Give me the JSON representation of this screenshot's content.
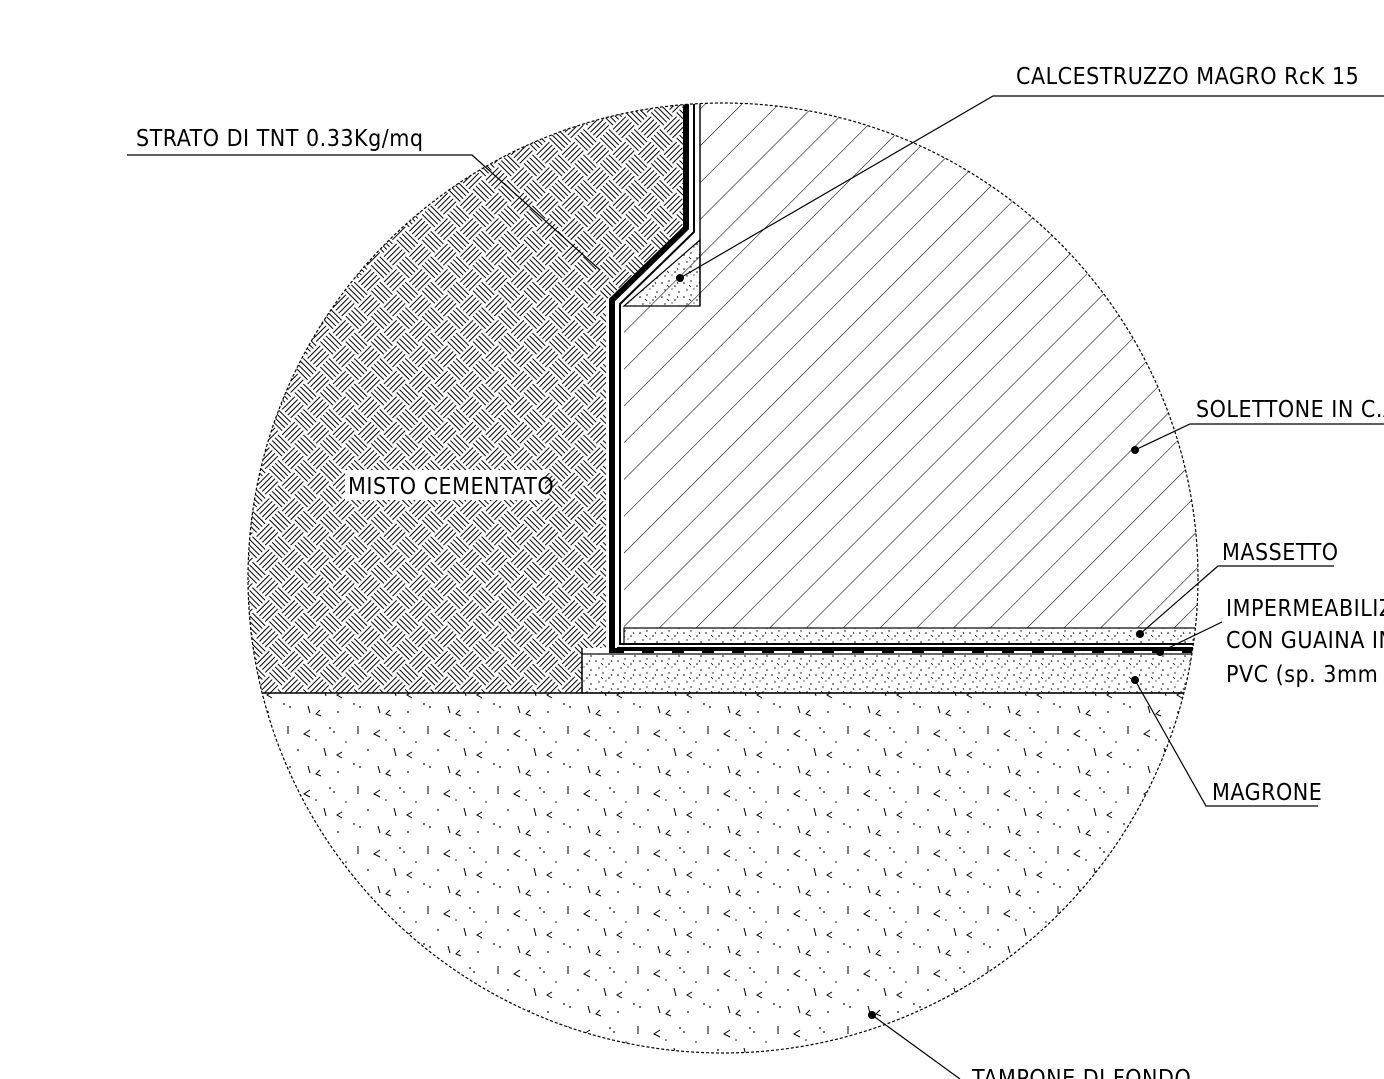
{
  "labels": {
    "calcestruzzo": "CALCESTRUZZO MAGRO RcK 15",
    "strato_tnt": "STRATO DI TNT 0.33Kg/mq",
    "misto_cementato": "MISTO CEMENTATO",
    "solettone": "SOLETTONE IN C.A",
    "massetto": "MASSETTO",
    "impermeabilizzazione_1": "IMPERMEABILIZZ",
    "impermeabilizzazione_2": "CON GUAINA IN",
    "impermeabilizzazione_3": "PVC (sp. 3mm",
    "magrone": "MAGRONE",
    "tampone": "TAMPONE DI FONDO"
  },
  "colors": {
    "ink": "#000000",
    "paper": "#ffffff"
  }
}
